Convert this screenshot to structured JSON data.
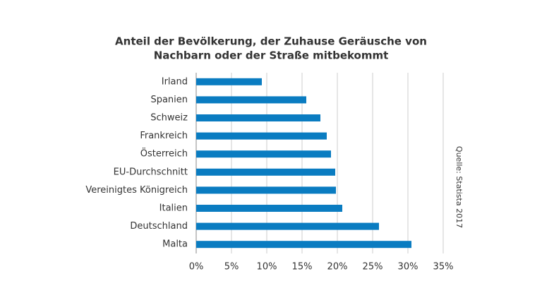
{
  "chart_data": {
    "type": "bar",
    "orientation": "horizontal",
    "title": [
      "Anteil der Bevölkerung, der Zuhause Geräusche von",
      "Nachbarn oder der Straße mitbekommt"
    ],
    "source": "Quelle: Statista 2017",
    "categories": [
      "Irland",
      "Spanien",
      "Schweiz",
      "Frankreich",
      "Österreich",
      "EU-Durchschnitt",
      "Vereinigtes Königreich",
      "Italien",
      "Deutschland",
      "Malta"
    ],
    "values": [
      9.3,
      15.6,
      17.6,
      18.5,
      19.1,
      19.7,
      19.8,
      20.7,
      25.9,
      30.5
    ],
    "color": "#0a7cc1",
    "xlim": [
      0,
      35
    ],
    "xticks": [
      {
        "value": 0,
        "label": "0%"
      },
      {
        "value": 5,
        "label": "5%"
      },
      {
        "value": 10,
        "label": "10%"
      },
      {
        "value": 15,
        "label": "15%"
      },
      {
        "value": 20,
        "label": "20%"
      },
      {
        "value": 25,
        "label": "25%"
      },
      {
        "value": 30,
        "label": "30%"
      },
      {
        "value": 35,
        "label": "35%"
      }
    ],
    "grid": true
  }
}
